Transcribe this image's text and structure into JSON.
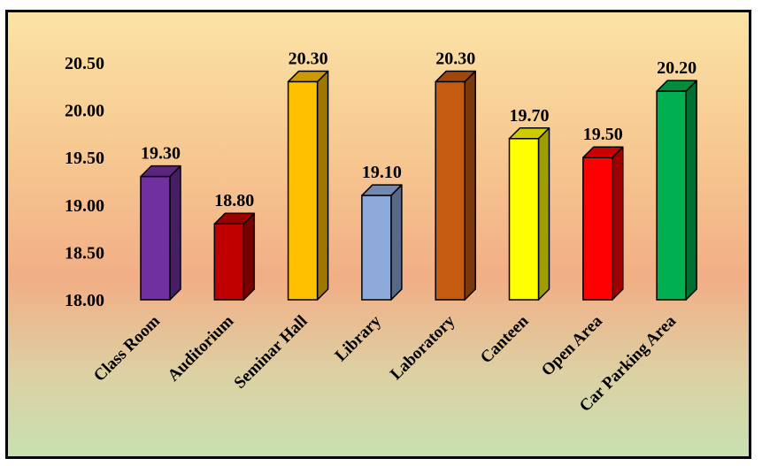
{
  "chart_data": {
    "type": "bar",
    "title": "",
    "xlabel": "",
    "ylabel": "",
    "categories": [
      "Class Room",
      "Auditorium",
      "Seminar Hall",
      "Library",
      "Laboratory",
      "Canteen",
      "Open Area",
      "Car Parking Area"
    ],
    "values": [
      19.3,
      18.8,
      20.3,
      19.1,
      20.3,
      19.7,
      19.5,
      20.2
    ],
    "data_labels": [
      "19.30",
      "18.80",
      "20.30",
      "19.10",
      "20.30",
      "19.70",
      "19.50",
      "20.20"
    ],
    "colors": [
      "#7030a0",
      "#c00000",
      "#ffc000",
      "#8eaadb",
      "#c55a11",
      "#ffff00",
      "#ff0000",
      "#00b050"
    ],
    "ylim": [
      18.0,
      20.5
    ],
    "yticks": [
      "18.00",
      "18.50",
      "19.00",
      "19.50",
      "20.00",
      "20.50"
    ],
    "grid": false,
    "legend": "none",
    "style": "3d-column"
  }
}
